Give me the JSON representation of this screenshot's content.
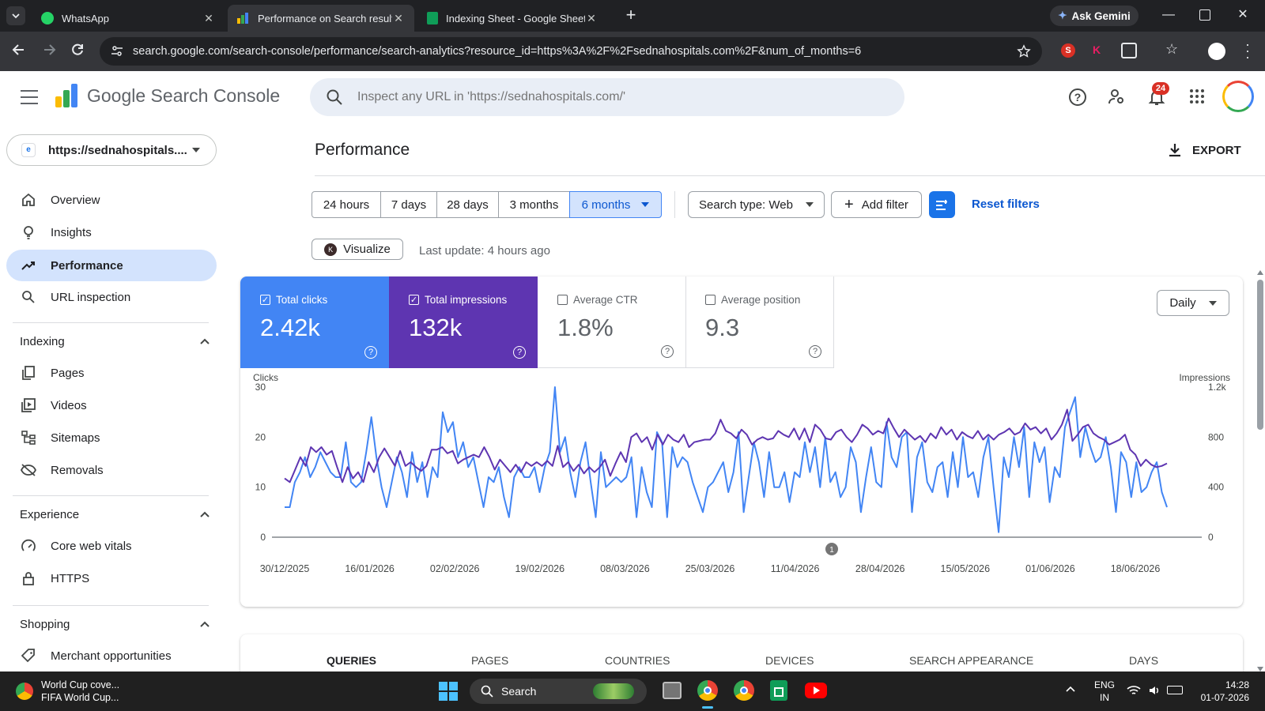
{
  "browser": {
    "tabs": [
      {
        "title": "WhatsApp",
        "active": false
      },
      {
        "title": "Performance on Search results",
        "active": true
      },
      {
        "title": "Indexing Sheet - Google Sheets",
        "active": false
      }
    ],
    "ask_gemini": "Ask Gemini",
    "url": "search.google.com/search-console/performance/search-analytics?resource_id=https%3A%2F%2Fsednahospitals.com%2F&num_of_months=6"
  },
  "app": {
    "logo_text": "Google Search Console",
    "search_placeholder": "Inspect any URL in 'https://sednahospitals.com/'",
    "notification_count": "24",
    "property": "https://sednahospitals...."
  },
  "sidebar": {
    "items": [
      {
        "label": "Overview",
        "icon": "home-icon"
      },
      {
        "label": "Insights",
        "icon": "lightbulb-icon"
      },
      {
        "label": "Performance",
        "icon": "trending-up-icon",
        "active": true
      },
      {
        "label": "URL inspection",
        "icon": "search-icon"
      }
    ],
    "indexing_title": "Indexing",
    "indexing_items": [
      {
        "label": "Pages",
        "icon": "pages-icon"
      },
      {
        "label": "Videos",
        "icon": "video-icon"
      },
      {
        "label": "Sitemaps",
        "icon": "sitemap-icon"
      },
      {
        "label": "Removals",
        "icon": "eye-off-icon"
      }
    ],
    "experience_title": "Experience",
    "experience_items": [
      {
        "label": "Core web vitals",
        "icon": "gauge-icon"
      },
      {
        "label": "HTTPS",
        "icon": "lock-icon"
      }
    ],
    "shopping_title": "Shopping",
    "shopping_items": [
      {
        "label": "Merchant opportunities",
        "icon": "tag-icon"
      }
    ]
  },
  "main": {
    "title": "Performance",
    "export_label": "EXPORT",
    "date_ranges": [
      "24 hours",
      "7 days",
      "28 days",
      "3 months",
      "6 months"
    ],
    "selected_range": "6 months",
    "search_type": "Search type: Web",
    "add_filter": "Add filter",
    "reset_filters": "Reset filters",
    "visualize": "Visualize",
    "last_update": "Last update: 4 hours ago",
    "granularity": "Daily",
    "annotation_marker": "1"
  },
  "metrics": [
    {
      "label": "Total clicks",
      "value": "2.42k",
      "checked": true,
      "color": "#4285f4"
    },
    {
      "label": "Total impressions",
      "value": "132k",
      "checked": true,
      "color": "#5e35b1"
    },
    {
      "label": "Average CTR",
      "value": "1.8%",
      "checked": false
    },
    {
      "label": "Average position",
      "value": "9.3",
      "checked": false
    }
  ],
  "chart_data": {
    "type": "line",
    "ylabel_left": "Clicks",
    "ylabel_right": "Impressions",
    "yticks_left": [
      "30",
      "20",
      "10",
      "0"
    ],
    "yticks_right": [
      "1.2k",
      "800",
      "400",
      "0"
    ],
    "ylim_left": [
      0,
      30
    ],
    "ylim_right": [
      0,
      1200
    ],
    "xticks": [
      "30/12/2025",
      "16/01/2026",
      "02/02/2026",
      "19/02/2026",
      "08/03/2026",
      "25/03/2026",
      "11/04/2026",
      "28/04/2026",
      "15/05/2026",
      "01/06/2026",
      "18/06/2026"
    ],
    "x_start": "2025-12-30",
    "grid": false,
    "series": [
      {
        "name": "Total clicks",
        "axis": "left",
        "color": "#4285f4",
        "values": [
          6,
          6,
          11,
          13,
          16,
          12,
          14,
          17,
          15,
          13,
          12,
          12,
          19,
          11,
          10,
          11,
          17,
          24,
          16,
          10,
          6,
          11,
          16,
          13,
          8,
          17,
          11,
          15,
          8,
          14,
          12,
          25,
          21,
          23,
          16,
          19,
          14,
          16,
          11,
          6,
          12,
          11,
          14,
          8,
          4,
          12,
          14,
          12,
          12,
          14,
          9,
          14,
          17,
          30,
          17,
          20,
          13,
          8,
          15,
          19,
          11,
          4,
          17,
          10,
          11,
          12,
          11,
          12,
          16,
          4,
          14,
          9,
          6,
          21,
          19,
          4,
          18,
          14,
          16,
          15,
          11,
          8,
          5,
          10,
          11,
          13,
          15,
          9,
          13,
          21,
          5,
          12,
          19,
          15,
          8,
          17,
          10,
          10,
          13,
          7,
          13,
          12,
          19,
          13,
          18,
          10,
          20,
          11,
          13,
          8,
          10,
          18,
          15,
          5,
          12,
          18,
          11,
          10,
          23,
          16,
          14,
          20,
          21,
          5,
          16,
          19,
          11,
          9,
          14,
          15,
          8,
          17,
          10,
          20,
          12,
          13,
          8,
          16,
          20,
          10,
          1,
          16,
          12,
          20,
          14,
          22,
          8,
          19,
          15,
          18,
          7,
          14,
          12,
          22,
          25,
          28,
          16,
          22,
          18,
          15,
          16,
          20,
          14,
          5,
          17,
          15,
          8,
          15,
          9,
          10,
          13,
          15,
          9,
          6
        ]
      },
      {
        "name": "Total impressions",
        "axis": "right",
        "color": "#5e35b1",
        "values": [
          470,
          440,
          540,
          640,
          570,
          720,
          680,
          720,
          660,
          690,
          560,
          440,
          560,
          470,
          520,
          440,
          600,
          520,
          640,
          710,
          640,
          570,
          690,
          570,
          600,
          560,
          530,
          570,
          700,
          700,
          720,
          670,
          690,
          590,
          620,
          640,
          660,
          640,
          720,
          640,
          540,
          620,
          570,
          520,
          580,
          520,
          600,
          570,
          600,
          570,
          610,
          570,
          730,
          560,
          600,
          530,
          580,
          510,
          560,
          520,
          560,
          620,
          490,
          590,
          680,
          600,
          800,
          830,
          760,
          800,
          700,
          820,
          740,
          820,
          780,
          760,
          820,
          720,
          760,
          770,
          780,
          780,
          830,
          940,
          850,
          830,
          790,
          860,
          820,
          740,
          780,
          800,
          780,
          790,
          850,
          820,
          800,
          870,
          780,
          870,
          760,
          900,
          860,
          790,
          780,
          840,
          860,
          800,
          760,
          820,
          900,
          870,
          820,
          850,
          830,
          950,
          870,
          800,
          860,
          820,
          780,
          810,
          760,
          830,
          790,
          880,
          820,
          860,
          780,
          840,
          810,
          790,
          850,
          780,
          820,
          780,
          820,
          840,
          870,
          820,
          840,
          910,
          860,
          880,
          830,
          870,
          780,
          830,
          900,
          1020,
          770,
          820,
          880,
          900,
          830,
          800,
          780,
          740,
          760,
          780,
          820,
          700,
          660,
          570,
          620,
          580,
          560,
          570,
          590
        ]
      }
    ]
  },
  "table_tabs": [
    "QUERIES",
    "PAGES",
    "COUNTRIES",
    "DEVICES",
    "SEARCH APPEARANCE",
    "DAYS"
  ],
  "taskbar": {
    "news_title": "World Cup cove...",
    "news_subtitle": "FIFA World Cup...",
    "search_label": "Search",
    "lang": "ENG",
    "region": "IN",
    "time": "14:28",
    "date": "01-07-2026"
  }
}
